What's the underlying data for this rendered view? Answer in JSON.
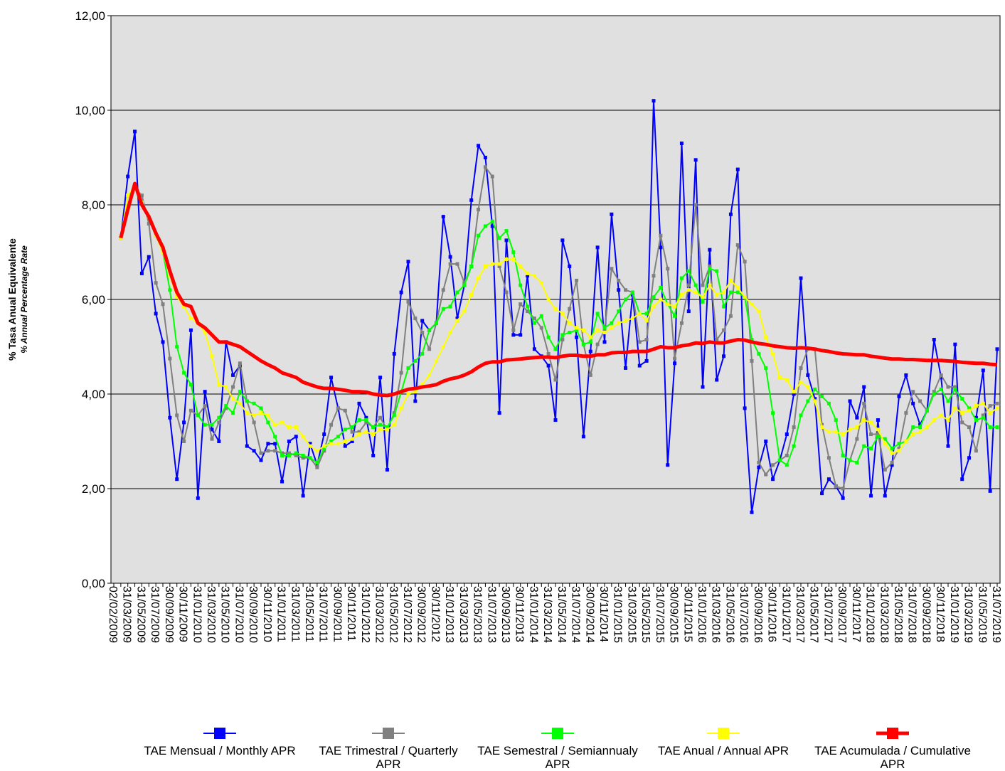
{
  "chart_data": {
    "type": "line",
    "y_label": "% Tasa Anual Equivalente",
    "y_sublabel": "% Annual Percentage Rate",
    "ylim": [
      0,
      12
    ],
    "yticks": [
      {
        "value": 0,
        "label": "0,00"
      },
      {
        "value": 2,
        "label": "2,00"
      },
      {
        "value": 4,
        "label": "4,00"
      },
      {
        "value": 6,
        "label": "6,00"
      },
      {
        "value": 8,
        "label": "8,00"
      },
      {
        "value": 10,
        "label": "10,00"
      },
      {
        "value": 12,
        "label": "12,00"
      }
    ],
    "grid": true,
    "categories": [
      "02/02/2009",
      null,
      "31/03/2009",
      null,
      "31/05/2009",
      null,
      "31/07/2009",
      null,
      "30/09/2009",
      null,
      "30/11/2009",
      null,
      "31/01/2010",
      null,
      "31/03/2010",
      null,
      "31/05/2010",
      null,
      "31/07/2010",
      null,
      "30/09/2010",
      null,
      "30/11/2010",
      null,
      "31/01/2011",
      null,
      "31/03/2011",
      null,
      "31/05/2011",
      null,
      "31/07/2011",
      null,
      "30/09/2011",
      null,
      "30/11/2011",
      null,
      "31/01/2012",
      null,
      "31/03/2012",
      null,
      "31/05/2012",
      null,
      "31/07/2012",
      null,
      "30/09/2012",
      null,
      "30/11/2012",
      null,
      "31/01/2013",
      null,
      "31/03/2013",
      null,
      "31/05/2013",
      null,
      "31/07/2013",
      null,
      "30/09/2013",
      null,
      "30/11/2013",
      null,
      "31/01/2014",
      null,
      "31/03/2014",
      null,
      "31/05/2014",
      null,
      "31/07/2014",
      null,
      "30/09/2014",
      null,
      "30/11/2014",
      null,
      "31/01/2015",
      null,
      "31/03/2015",
      null,
      "31/05/2015",
      null,
      "31/07/2015",
      null,
      "30/09/2015",
      null,
      "30/11/2015",
      null,
      "31/01/2016",
      null,
      "31/03/2016",
      null,
      "31/05/2016",
      null,
      "31/07/2016",
      null,
      "30/09/2016",
      null,
      "30/11/2016",
      null,
      "31/01/2017",
      null,
      "31/03/2017",
      null,
      "31/05/2017",
      null,
      "31/07/2017",
      null,
      "30/09/2017",
      null,
      "30/11/2017",
      null,
      "31/01/2018",
      null,
      "31/03/2018",
      null,
      "31/05/2018",
      null,
      "31/07/2018",
      null,
      "30/09/2018",
      null,
      "30/11/2018",
      null,
      "31/01/2019",
      null,
      "31/03/2019",
      null,
      "31/05/2019",
      null,
      "31/07/2019"
    ],
    "series": [
      {
        "name": "TAE Mensual / Monthly APR",
        "color": "#0000ff",
        "markers": true,
        "width": 2,
        "values": [
          null,
          7.3,
          8.6,
          9.55,
          6.55,
          6.9,
          5.7,
          5.1,
          3.5,
          2.2,
          3.4,
          5.35,
          1.8,
          4.05,
          3.25,
          3.0,
          5.1,
          4.4,
          4.6,
          2.9,
          2.8,
          2.6,
          2.95,
          2.95,
          2.15,
          3.0,
          3.1,
          1.85,
          2.95,
          2.5,
          3.15,
          4.35,
          3.7,
          2.9,
          3.0,
          3.8,
          3.5,
          2.7,
          4.35,
          2.4,
          4.85,
          6.15,
          6.8,
          3.85,
          5.55,
          5.35,
          5.5,
          7.75,
          6.9,
          5.6,
          6.3,
          8.1,
          9.25,
          9.0,
          7.55,
          3.6,
          7.25,
          5.25,
          5.25,
          6.5,
          4.95,
          4.8,
          4.6,
          3.45,
          7.25,
          6.7,
          5.2,
          3.1,
          4.9,
          7.1,
          5.1,
          7.8,
          6.2,
          4.55,
          6.1,
          4.6,
          4.7,
          10.2,
          7.1,
          2.5,
          4.65,
          9.3,
          5.75,
          8.95,
          4.15,
          7.05,
          4.3,
          4.8,
          7.8,
          8.75,
          3.7,
          1.5,
          2.45,
          3.0,
          2.2,
          2.6,
          3.15,
          4.0,
          6.45,
          4.4,
          3.9,
          1.9,
          2.2,
          2.05,
          1.8,
          3.85,
          3.5,
          4.15,
          1.85,
          3.45,
          1.85,
          2.5,
          3.95,
          4.4,
          3.8,
          3.35,
          3.65,
          5.15,
          4.35,
          2.9,
          5.05,
          2.2,
          2.65,
          3.5,
          4.5,
          1.95,
          4.95
        ]
      },
      {
        "name": "TAE Trimestral / Quarterly APR",
        "color": "#808080",
        "markers": true,
        "width": 2,
        "values": [
          null,
          7.3,
          8.2,
          8.35,
          8.2,
          7.6,
          6.35,
          5.9,
          4.75,
          3.55,
          3.0,
          3.65,
          3.55,
          3.75,
          3.05,
          3.4,
          3.7,
          4.15,
          4.65,
          3.85,
          3.4,
          2.75,
          2.8,
          2.8,
          2.75,
          2.75,
          2.7,
          2.65,
          2.65,
          2.45,
          2.8,
          3.35,
          3.7,
          3.65,
          3.2,
          3.2,
          3.4,
          3.3,
          3.5,
          3.25,
          3.6,
          4.45,
          5.95,
          5.6,
          5.3,
          4.95,
          5.5,
          6.2,
          6.75,
          6.75,
          6.35,
          6.7,
          7.9,
          8.8,
          8.6,
          6.7,
          6.15,
          5.35,
          5.9,
          5.75,
          5.6,
          5.4,
          4.85,
          4.3,
          5.15,
          5.8,
          6.4,
          5.05,
          4.4,
          5.05,
          5.35,
          6.65,
          6.4,
          6.2,
          6.15,
          5.1,
          5.15,
          6.5,
          7.35,
          6.65,
          4.75,
          5.5,
          6.3,
          8.0,
          6.3,
          6.7,
          5.15,
          5.35,
          5.65,
          7.15,
          6.8,
          4.7,
          2.55,
          2.3,
          2.5,
          2.6,
          2.7,
          3.3,
          4.55,
          4.95,
          4.95,
          3.35,
          2.65,
          2.05,
          2.0,
          2.6,
          3.05,
          3.8,
          3.15,
          3.15,
          2.4,
          2.55,
          2.85,
          3.6,
          4.05,
          3.85,
          3.65,
          4.05,
          4.4,
          4.15,
          4.15,
          3.4,
          3.3,
          2.8,
          3.55,
          3.75,
          3.8
        ]
      },
      {
        "name": "TAE Semestral / Semiannualy APR",
        "color": "#00ff00",
        "markers": true,
        "width": 2,
        "values": [
          null,
          7.3,
          8.2,
          8.4,
          8.05,
          7.75,
          7.35,
          7.0,
          6.2,
          5.0,
          4.45,
          4.2,
          3.55,
          3.35,
          3.35,
          3.5,
          3.75,
          3.6,
          4.05,
          3.85,
          3.8,
          3.7,
          3.4,
          3.1,
          2.7,
          2.7,
          2.75,
          2.7,
          2.65,
          2.55,
          2.85,
          3.0,
          3.1,
          3.25,
          3.3,
          3.45,
          3.45,
          3.3,
          3.35,
          3.3,
          3.55,
          4.05,
          4.55,
          4.7,
          4.85,
          5.35,
          5.5,
          5.8,
          5.85,
          6.15,
          6.3,
          6.7,
          7.35,
          7.55,
          7.65,
          7.3,
          7.45,
          7.0,
          6.3,
          5.85,
          5.5,
          5.65,
          5.2,
          4.95,
          5.25,
          5.3,
          5.35,
          5.05,
          5.1,
          5.7,
          5.4,
          5.5,
          5.75,
          6.0,
          6.15,
          5.7,
          5.7,
          6.05,
          6.25,
          5.9,
          5.65,
          6.45,
          6.6,
          6.3,
          5.95,
          6.65,
          6.6,
          5.85,
          6.15,
          6.15,
          6.05,
          5.15,
          4.85,
          4.55,
          3.6,
          2.6,
          2.5,
          2.9,
          3.55,
          3.85,
          4.1,
          3.95,
          3.8,
          3.45,
          2.7,
          2.6,
          2.55,
          2.9,
          2.85,
          3.1,
          3.05,
          2.85,
          2.95,
          3.0,
          3.3,
          3.3,
          3.65,
          4.0,
          4.1,
          3.85,
          4.1,
          3.9,
          3.7,
          3.45,
          3.5,
          3.3,
          3.3
        ]
      },
      {
        "name": "TAE Anual / Annual APR",
        "color": "#ffff00",
        "markers": true,
        "width": 2,
        "values": [
          null,
          7.3,
          8.2,
          8.4,
          8.05,
          7.75,
          7.35,
          7.0,
          6.5,
          6.05,
          5.85,
          5.6,
          5.5,
          5.3,
          4.8,
          4.2,
          4.15,
          3.9,
          3.8,
          3.6,
          3.55,
          3.6,
          3.55,
          3.35,
          3.4,
          3.3,
          3.3,
          3.1,
          2.9,
          2.8,
          2.9,
          2.95,
          2.95,
          3.0,
          3.05,
          3.15,
          3.2,
          3.15,
          3.25,
          3.25,
          3.35,
          3.7,
          4.0,
          4.05,
          4.2,
          4.4,
          4.7,
          5.0,
          5.3,
          5.55,
          5.75,
          6.1,
          6.45,
          6.7,
          6.75,
          6.75,
          6.85,
          6.85,
          6.7,
          6.55,
          6.5,
          6.35,
          6.0,
          5.8,
          5.7,
          5.5,
          5.4,
          5.35,
          5.2,
          5.35,
          5.3,
          5.4,
          5.5,
          5.55,
          5.6,
          5.7,
          5.55,
          5.85,
          6.0,
          5.9,
          5.85,
          6.1,
          6.2,
          6.15,
          6.05,
          6.3,
          6.1,
          6.15,
          6.4,
          6.25,
          6.05,
          5.9,
          5.75,
          5.2,
          4.85,
          4.35,
          4.3,
          4.05,
          4.25,
          4.15,
          3.85,
          3.3,
          3.2,
          3.2,
          3.15,
          3.25,
          3.3,
          3.45,
          3.4,
          3.25,
          2.95,
          2.75,
          2.8,
          3.0,
          3.15,
          3.2,
          3.3,
          3.45,
          3.55,
          3.45,
          3.7,
          3.6,
          3.65,
          3.75,
          3.8,
          3.6,
          3.7
        ]
      },
      {
        "name": "TAE Acumulada / Cumulative APR",
        "color": "#ff0000",
        "markers": false,
        "width": 5,
        "values": [
          null,
          7.3,
          7.9,
          8.45,
          8.0,
          7.75,
          7.4,
          7.1,
          6.6,
          6.15,
          5.9,
          5.85,
          5.5,
          5.4,
          5.25,
          5.1,
          5.1,
          5.05,
          5.0,
          4.9,
          4.8,
          4.7,
          4.62,
          4.55,
          4.45,
          4.4,
          4.35,
          4.25,
          4.2,
          4.15,
          4.12,
          4.12,
          4.1,
          4.08,
          4.05,
          4.05,
          4.04,
          4.0,
          3.98,
          3.97,
          4.0,
          4.05,
          4.1,
          4.12,
          4.15,
          4.17,
          4.2,
          4.27,
          4.32,
          4.35,
          4.4,
          4.47,
          4.57,
          4.65,
          4.68,
          4.68,
          4.72,
          4.73,
          4.74,
          4.76,
          4.77,
          4.78,
          4.78,
          4.77,
          4.8,
          4.82,
          4.82,
          4.8,
          4.8,
          4.83,
          4.83,
          4.87,
          4.88,
          4.88,
          4.9,
          4.9,
          4.9,
          4.95,
          5.0,
          4.98,
          4.98,
          5.02,
          5.04,
          5.08,
          5.07,
          5.1,
          5.08,
          5.08,
          5.12,
          5.15,
          5.14,
          5.1,
          5.07,
          5.05,
          5.02,
          5.0,
          4.98,
          4.97,
          4.98,
          4.97,
          4.95,
          4.92,
          4.9,
          4.87,
          4.85,
          4.84,
          4.83,
          4.83,
          4.8,
          4.78,
          4.76,
          4.74,
          4.74,
          4.73,
          4.73,
          4.72,
          4.71,
          4.71,
          4.71,
          4.7,
          4.69,
          4.67,
          4.66,
          4.65,
          4.65,
          4.63,
          4.62
        ]
      }
    ]
  }
}
